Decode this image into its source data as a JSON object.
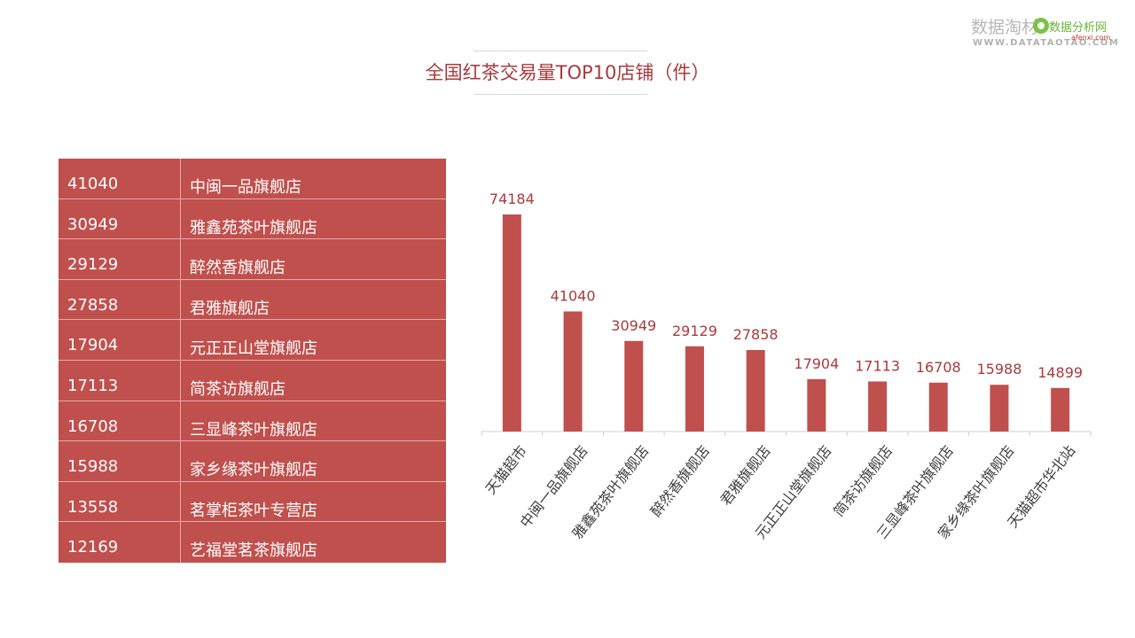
{
  "watermark": {
    "main": "数据淘材",
    "url": "WWW.DATATAOTAO.COM",
    "logo_text": "数据分析网",
    "logo_sub": "afenxi.com"
  },
  "chart_data": [
    {
      "type": "table",
      "title": "",
      "rows": [
        {
          "value": "41040",
          "name": "中闽一品旗舰店"
        },
        {
          "value": "30949",
          "name": "雅鑫苑茶叶旗舰店"
        },
        {
          "value": "29129",
          "name": "醉然香旗舰店"
        },
        {
          "value": "27858",
          "name": "君雅旗舰店"
        },
        {
          "value": "17904",
          "name": "元正正山堂旗舰店"
        },
        {
          "value": "17113",
          "name": "简茶访旗舰店"
        },
        {
          "value": "16708",
          "name": "三显峰茶叶旗舰店"
        },
        {
          "value": "15988",
          "name": "家乡缘茶叶旗舰店"
        },
        {
          "value": "13558",
          "name": "茗掌柜茶叶专营店"
        },
        {
          "value": "12169",
          "name": "艺福堂茗茶旗舰店"
        }
      ]
    },
    {
      "type": "bar",
      "title": "全国红茶交易量TOP10店铺（件）",
      "xlabel": "",
      "ylabel": "",
      "categories": [
        "天猫超市",
        "中闽一品旗舰店",
        "雅鑫苑茶叶旗舰店",
        "醉然香旗舰店",
        "君雅旗舰店",
        "元正正山堂旗舰店",
        "简茶访旗舰店",
        "三显峰茶叶旗舰店",
        "家乡缘茶叶旗舰店",
        "天猫超市华北站"
      ],
      "values": [
        74184,
        41040,
        30949,
        29129,
        27858,
        17904,
        17113,
        16708,
        15988,
        14899
      ],
      "ylim": [
        0,
        80000
      ],
      "grid": false,
      "data_labels": true,
      "bar_color": "#c0504d",
      "label_color": "#a83a3e"
    }
  ]
}
